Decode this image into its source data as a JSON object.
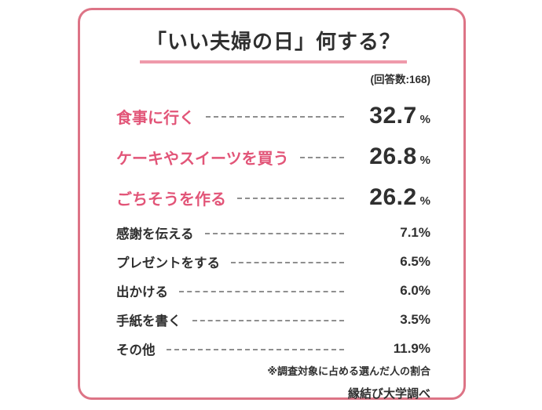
{
  "card": {
    "title": "「いい夫婦の日」何する？",
    "respondents_label": "(回答数:168)",
    "footnote": "※調査対象に占める選んだ人の割合",
    "source": "縁結び大学調べ"
  },
  "colors": {
    "border": "#dd7486",
    "accent": "#e25578",
    "underline": "#ef9aab",
    "text": "#2f2f2f",
    "leader": "#8f8f8f",
    "background": "#ffffff"
  },
  "chart_data": {
    "type": "table",
    "title": "「いい夫婦の日」何する？",
    "respondent_count": 168,
    "value_unit": "%",
    "categories": [
      "食事に行く",
      "ケーキやスイーツを買う",
      "ごちそうを作る",
      "感謝を伝える",
      "プレゼントをする",
      "出かける",
      "手紙を書く",
      "その他"
    ],
    "values": [
      32.7,
      26.8,
      26.2,
      7.1,
      6.5,
      6.0,
      3.5,
      11.9
    ],
    "highlighted": [
      true,
      true,
      true,
      false,
      false,
      false,
      false,
      false
    ],
    "legend": "none",
    "footnote": "※調査対象に占める選んだ人の割合",
    "source": "縁結び大学調べ"
  }
}
